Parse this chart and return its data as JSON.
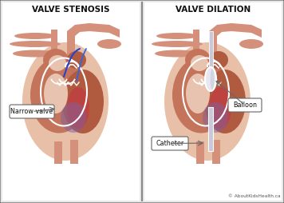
{
  "title_left": "VALVE STENOSIS",
  "title_right": "VALVE DILATION",
  "label_narrow": "Narrow valve",
  "label_balloon": "Balloon",
  "label_catheter": "Catheter",
  "copyright": "© AboutKidsHealth.ca",
  "bg_outer": "#e8e8e8",
  "bg_panel": "#f0f0f0",
  "panel_white": "#ffffff",
  "heart_med": "#c4745a",
  "heart_light": "#d4907a",
  "heart_lightest": "#e8c0a8",
  "heart_dark": "#b05a40",
  "vessel_color": "#d4907a",
  "vessel_light": "#e0b090",
  "inner_light": "#e8c4b0",
  "chamber_purple": "#8060a0",
  "chamber_red": "#c04040",
  "white": "#ffffff",
  "blue1": "#2244cc",
  "blue2": "#3366dd",
  "catheter_gray": "#c8c8d8",
  "catheter_white": "#e8e8f0",
  "border_dark": "#555555",
  "text_dark": "#111111",
  "divider": "#888888",
  "title_fs": 7.5,
  "label_fs": 5.8,
  "copy_fs": 4.2
}
